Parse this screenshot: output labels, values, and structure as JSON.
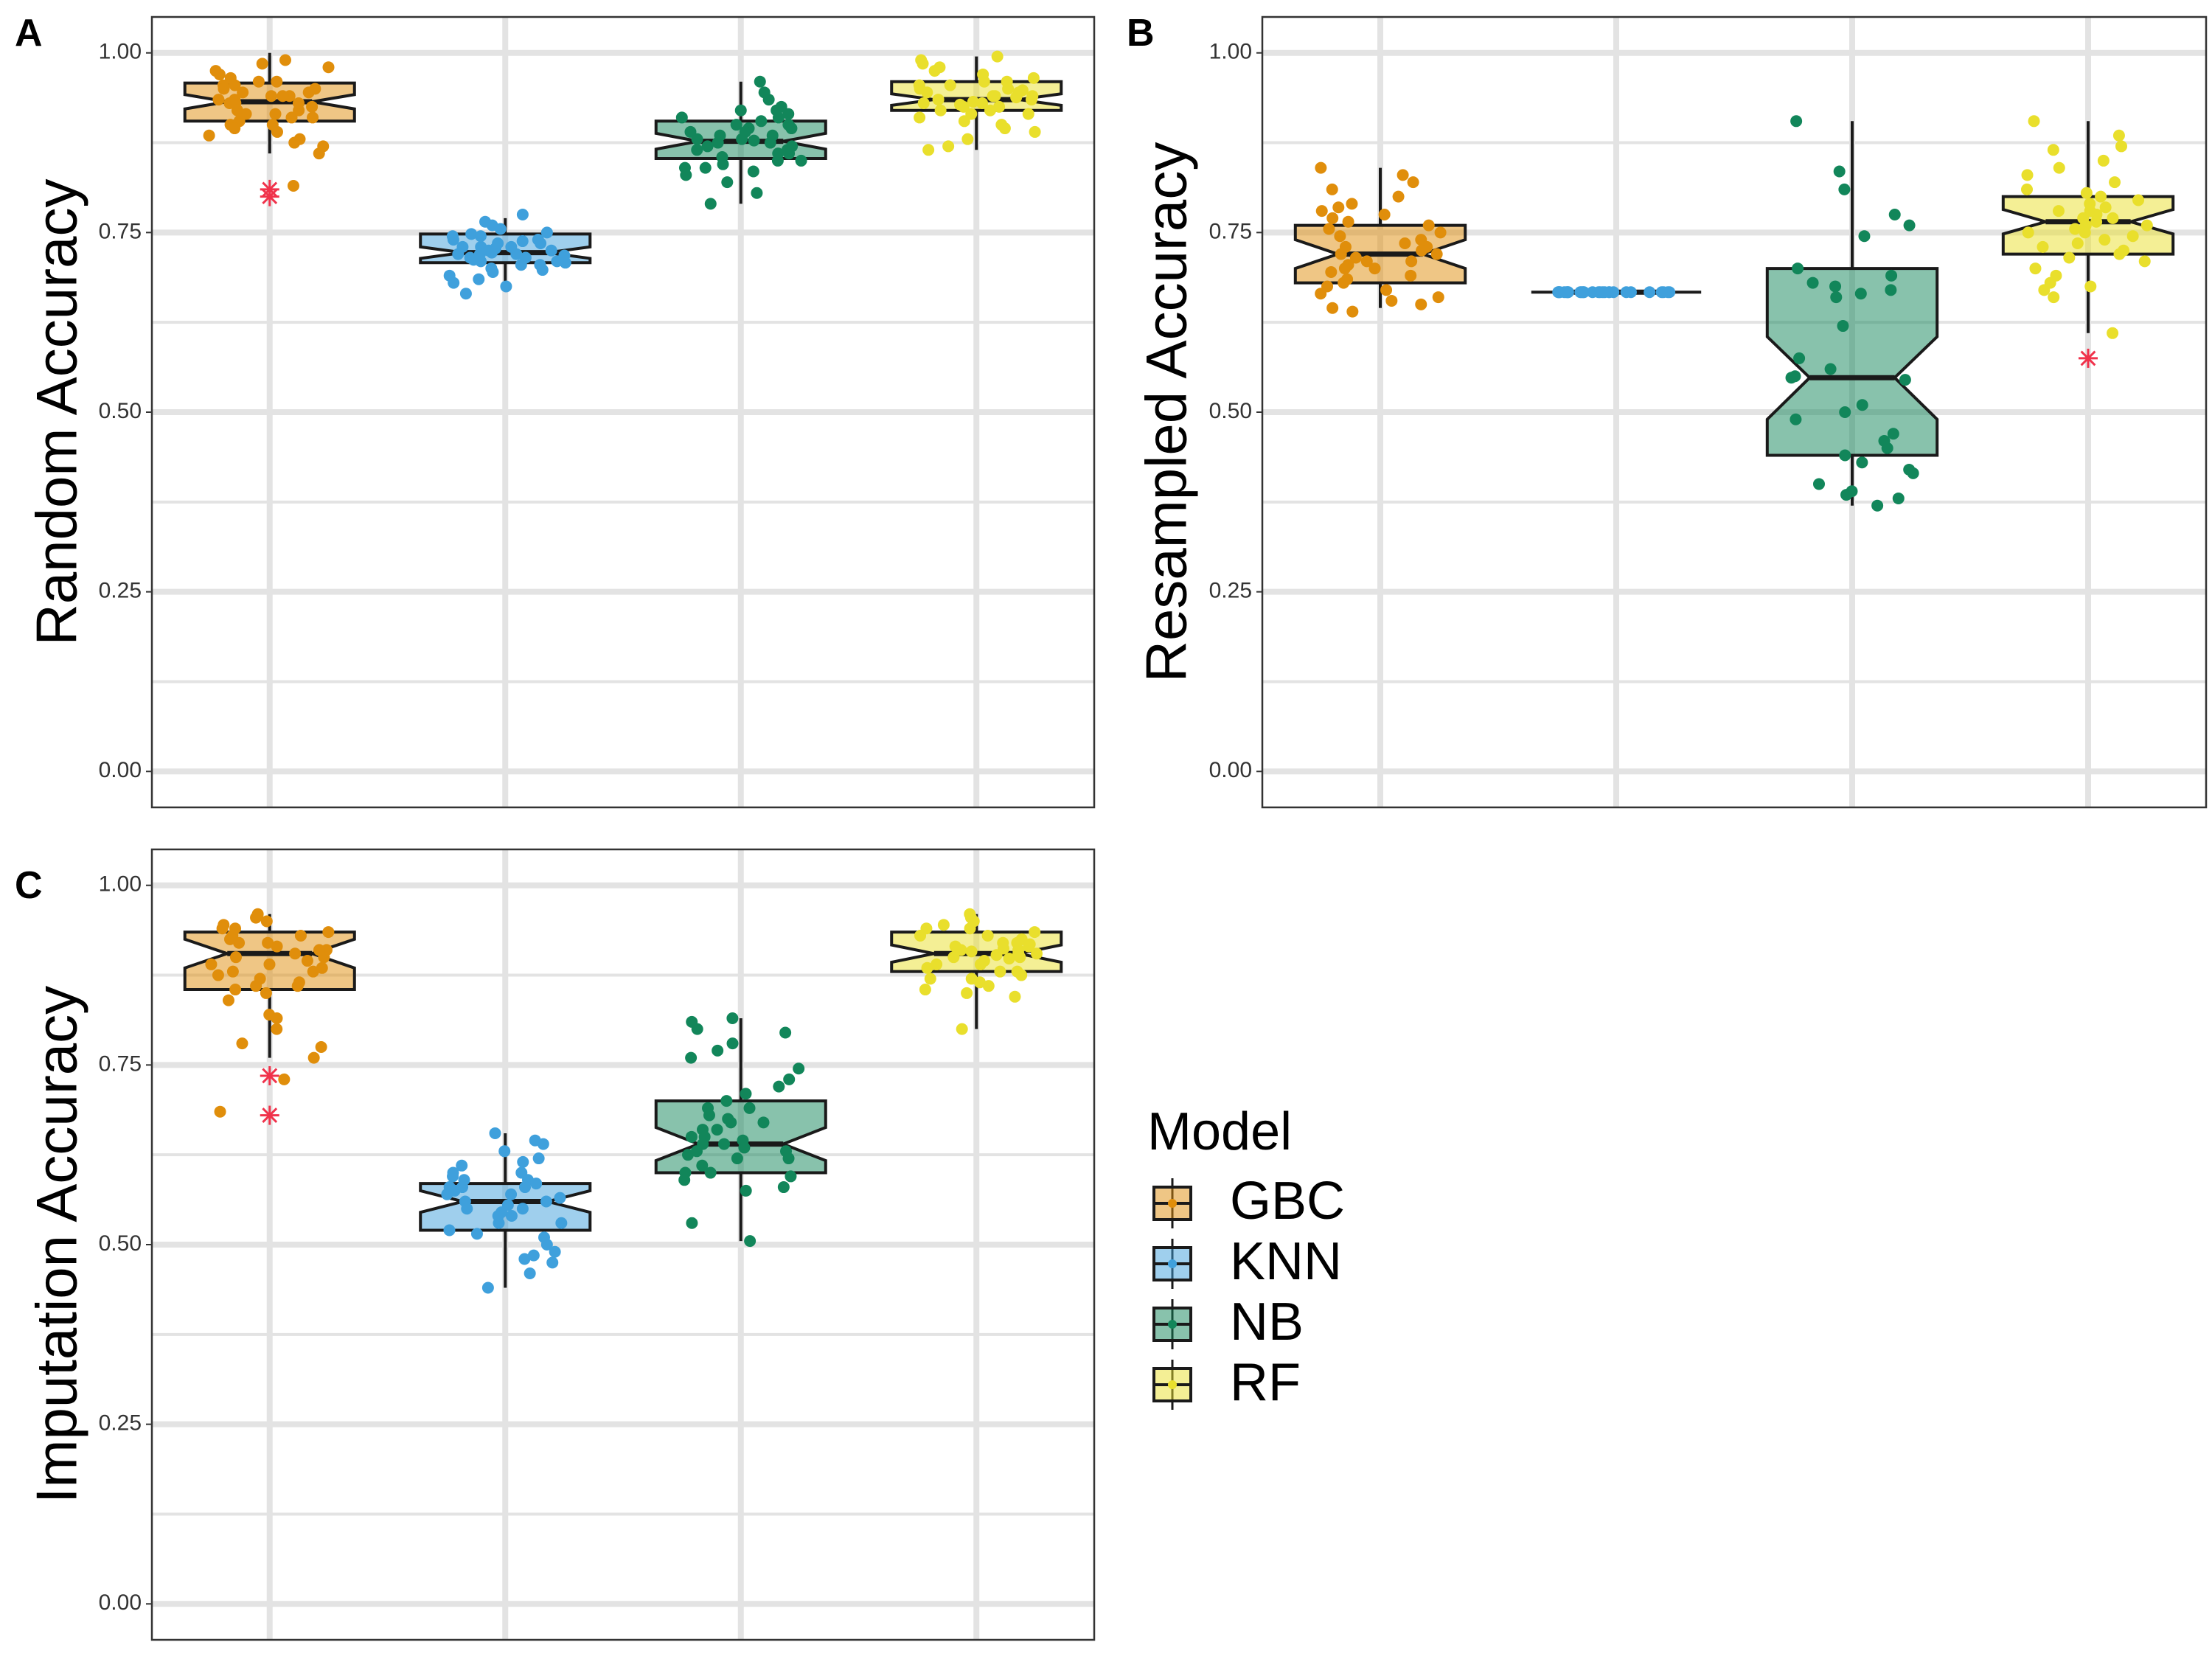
{
  "colors": {
    "GBC": "#E08E0B",
    "KNN": "#3FA0DC",
    "NB": "#12865A",
    "RF": "#E9DF2C",
    "outlier": "#F0324B",
    "grid": "#E3E3E3",
    "panel_border": "#333333"
  },
  "legend": {
    "title": "Model",
    "items": [
      "GBC",
      "KNN",
      "NB",
      "RF"
    ]
  },
  "chart_data": [
    {
      "panel": "A",
      "type": "boxplot",
      "ylabel": "Random Accuracy",
      "ylim": [
        -0.05,
        1.05
      ],
      "yticks": [
        "0.00",
        "0.25",
        "0.50",
        "0.75",
        "1.00"
      ],
      "categories": [
        "GBC",
        "KNN",
        "NB",
        "RF"
      ],
      "boxes": [
        {
          "name": "GBC",
          "min": 0.86,
          "q1": 0.905,
          "median": 0.932,
          "q3": 0.958,
          "max": 1.0,
          "notch": [
            0.922,
            0.942
          ],
          "outliers": [
            0.8,
            0.81
          ]
        },
        {
          "name": "KNN",
          "min": 0.67,
          "q1": 0.708,
          "median": 0.722,
          "q3": 0.748,
          "max": 0.77,
          "notch": [
            0.714,
            0.73
          ],
          "outliers": []
        },
        {
          "name": "NB",
          "min": 0.79,
          "q1": 0.853,
          "median": 0.877,
          "q3": 0.905,
          "max": 0.96,
          "notch": [
            0.866,
            0.888
          ],
          "outliers": []
        },
        {
          "name": "RF",
          "min": 0.865,
          "q1": 0.92,
          "median": 0.935,
          "q3": 0.96,
          "max": 0.995,
          "notch": [
            0.927,
            0.943
          ],
          "outliers": []
        }
      ],
      "points": {
        "GBC": [
          0.99,
          0.98,
          0.975,
          0.97,
          0.965,
          0.96,
          0.955,
          0.95,
          0.945,
          0.94,
          0.94,
          0.935,
          0.93,
          0.93,
          0.925,
          0.92,
          0.915,
          0.91,
          0.905,
          0.9,
          0.895,
          0.89,
          0.885,
          0.88,
          0.875,
          0.87,
          0.86,
          0.95,
          0.935,
          0.92,
          0.96,
          0.91,
          0.945,
          0.985,
          0.93,
          0.9,
          0.94,
          0.955,
          0.915,
          0.815
        ],
        "KNN": [
          0.775,
          0.765,
          0.76,
          0.755,
          0.75,
          0.748,
          0.745,
          0.74,
          0.738,
          0.735,
          0.73,
          0.728,
          0.725,
          0.722,
          0.72,
          0.718,
          0.715,
          0.712,
          0.71,
          0.708,
          0.705,
          0.7,
          0.698,
          0.695,
          0.69,
          0.685,
          0.68,
          0.675,
          0.665,
          0.74,
          0.73,
          0.72,
          0.71,
          0.725,
          0.735,
          0.715,
          0.745,
          0.705,
          0.73,
          0.72
        ],
        "NB": [
          0.96,
          0.945,
          0.935,
          0.925,
          0.92,
          0.915,
          0.91,
          0.905,
          0.9,
          0.895,
          0.89,
          0.885,
          0.88,
          0.878,
          0.875,
          0.87,
          0.865,
          0.86,
          0.855,
          0.85,
          0.845,
          0.84,
          0.835,
          0.83,
          0.82,
          0.805,
          0.79,
          0.9,
          0.88,
          0.87,
          0.86,
          0.885,
          0.895,
          0.875,
          0.865,
          0.91,
          0.85,
          0.84,
          0.92,
          0.89
        ],
        "RF": [
          0.995,
          0.99,
          0.985,
          0.98,
          0.975,
          0.97,
          0.965,
          0.96,
          0.955,
          0.95,
          0.948,
          0.945,
          0.94,
          0.938,
          0.935,
          0.932,
          0.93,
          0.928,
          0.925,
          0.92,
          0.915,
          0.91,
          0.905,
          0.9,
          0.895,
          0.89,
          0.88,
          0.87,
          0.865,
          0.95,
          0.94,
          0.93,
          0.92,
          0.96,
          0.945,
          0.935,
          0.925,
          0.915,
          0.955,
          0.94
        ]
      }
    },
    {
      "panel": "B",
      "type": "boxplot",
      "ylabel": "Resampled Accuracy",
      "ylim": [
        -0.05,
        1.05
      ],
      "yticks": [
        "0.00",
        "0.25",
        "0.50",
        "0.75",
        "1.00"
      ],
      "categories": [
        "GBC",
        "KNN",
        "NB",
        "RF"
      ],
      "boxes": [
        {
          "name": "GBC",
          "min": 0.645,
          "q1": 0.68,
          "median": 0.72,
          "q3": 0.76,
          "max": 0.84,
          "notch": [
            0.7,
            0.74
          ],
          "outliers": []
        },
        {
          "name": "KNN",
          "min": 0.667,
          "q1": 0.667,
          "median": 0.667,
          "q3": 0.667,
          "max": 0.667,
          "notch": [
            0.667,
            0.667
          ],
          "outliers": []
        },
        {
          "name": "NB",
          "min": 0.37,
          "q1": 0.44,
          "median": 0.548,
          "q3": 0.7,
          "max": 0.905,
          "notch": [
            0.49,
            0.605
          ],
          "outliers": []
        },
        {
          "name": "RF",
          "min": 0.61,
          "q1": 0.72,
          "median": 0.765,
          "q3": 0.8,
          "max": 0.905,
          "notch": [
            0.748,
            0.782
          ],
          "outliers": [
            0.575
          ]
        }
      ],
      "points": {
        "GBC": [
          0.84,
          0.83,
          0.82,
          0.81,
          0.8,
          0.79,
          0.785,
          0.78,
          0.775,
          0.77,
          0.765,
          0.76,
          0.755,
          0.75,
          0.745,
          0.74,
          0.735,
          0.73,
          0.725,
          0.72,
          0.715,
          0.71,
          0.705,
          0.7,
          0.695,
          0.69,
          0.685,
          0.68,
          0.675,
          0.67,
          0.665,
          0.66,
          0.655,
          0.65,
          0.645,
          0.64,
          0.72,
          0.73,
          0.71,
          0.7
        ],
        "KNN": [
          0.667,
          0.667,
          0.667,
          0.667,
          0.667,
          0.667,
          0.667,
          0.667,
          0.667,
          0.667,
          0.667,
          0.667,
          0.667,
          0.667,
          0.667,
          0.667,
          0.667,
          0.667,
          0.667,
          0.667,
          0.667,
          0.667,
          0.667,
          0.667,
          0.667,
          0.667,
          0.667,
          0.667,
          0.667,
          0.667
        ],
        "NB": [
          0.905,
          0.835,
          0.81,
          0.775,
          0.76,
          0.745,
          0.7,
          0.69,
          0.68,
          0.675,
          0.67,
          0.665,
          0.66,
          0.62,
          0.575,
          0.56,
          0.55,
          0.548,
          0.545,
          0.51,
          0.5,
          0.49,
          0.47,
          0.46,
          0.45,
          0.44,
          0.43,
          0.42,
          0.415,
          0.4,
          0.39,
          0.385,
          0.38,
          0.37
        ],
        "RF": [
          0.905,
          0.885,
          0.87,
          0.865,
          0.85,
          0.84,
          0.83,
          0.82,
          0.81,
          0.805,
          0.8,
          0.795,
          0.79,
          0.785,
          0.78,
          0.775,
          0.77,
          0.765,
          0.76,
          0.755,
          0.75,
          0.745,
          0.74,
          0.735,
          0.73,
          0.725,
          0.72,
          0.715,
          0.71,
          0.7,
          0.69,
          0.68,
          0.675,
          0.67,
          0.66,
          0.61,
          0.78,
          0.77,
          0.76,
          0.75
        ]
      }
    },
    {
      "panel": "C",
      "type": "boxplot",
      "ylabel": "Imputation Accuracy",
      "ylim": [
        -0.05,
        1.05
      ],
      "yticks": [
        "0.00",
        "0.25",
        "0.50",
        "0.75",
        "1.00"
      ],
      "categories": [
        "GBC",
        "KNN",
        "NB",
        "RF"
      ],
      "boxes": [
        {
          "name": "GBC",
          "min": 0.76,
          "q1": 0.855,
          "median": 0.905,
          "q3": 0.935,
          "max": 0.96,
          "notch": [
            0.885,
            0.925
          ],
          "outliers": [
            0.68,
            0.735
          ]
        },
        {
          "name": "KNN",
          "min": 0.44,
          "q1": 0.52,
          "median": 0.56,
          "q3": 0.585,
          "max": 0.655,
          "notch": [
            0.545,
            0.575
          ],
          "outliers": []
        },
        {
          "name": "NB",
          "min": 0.505,
          "q1": 0.6,
          "median": 0.64,
          "q3": 0.7,
          "max": 0.815,
          "notch": [
            0.617,
            0.663
          ],
          "outliers": []
        },
        {
          "name": "RF",
          "min": 0.8,
          "q1": 0.88,
          "median": 0.905,
          "q3": 0.935,
          "max": 0.96,
          "notch": [
            0.893,
            0.917
          ],
          "outliers": []
        }
      ],
      "points": {
        "GBC": [
          0.96,
          0.955,
          0.95,
          0.945,
          0.94,
          0.935,
          0.93,
          0.925,
          0.92,
          0.915,
          0.91,
          0.905,
          0.9,
          0.895,
          0.89,
          0.885,
          0.88,
          0.875,
          0.87,
          0.865,
          0.86,
          0.855,
          0.85,
          0.84,
          0.82,
          0.815,
          0.8,
          0.78,
          0.775,
          0.76,
          0.73,
          0.685,
          0.91,
          0.9,
          0.92,
          0.89,
          0.93,
          0.94,
          0.88,
          0.86
        ],
        "KNN": [
          0.655,
          0.645,
          0.64,
          0.63,
          0.62,
          0.615,
          0.61,
          0.6,
          0.595,
          0.59,
          0.585,
          0.58,
          0.575,
          0.57,
          0.565,
          0.56,
          0.555,
          0.55,
          0.545,
          0.54,
          0.53,
          0.52,
          0.515,
          0.51,
          0.5,
          0.49,
          0.485,
          0.48,
          0.475,
          0.46,
          0.44,
          0.56,
          0.57,
          0.58,
          0.55,
          0.59,
          0.53,
          0.6,
          0.54,
          0.58
        ],
        "NB": [
          0.815,
          0.81,
          0.8,
          0.795,
          0.78,
          0.77,
          0.76,
          0.745,
          0.73,
          0.72,
          0.71,
          0.7,
          0.69,
          0.68,
          0.675,
          0.67,
          0.66,
          0.65,
          0.645,
          0.64,
          0.635,
          0.63,
          0.625,
          0.62,
          0.61,
          0.6,
          0.595,
          0.59,
          0.58,
          0.575,
          0.53,
          0.505,
          0.64,
          0.65,
          0.62,
          0.66,
          0.63,
          0.6,
          0.67,
          0.69
        ],
        "RF": [
          0.96,
          0.955,
          0.95,
          0.945,
          0.94,
          0.935,
          0.93,
          0.925,
          0.92,
          0.918,
          0.915,
          0.912,
          0.91,
          0.908,
          0.905,
          0.903,
          0.9,
          0.898,
          0.895,
          0.89,
          0.885,
          0.88,
          0.875,
          0.87,
          0.865,
          0.86,
          0.855,
          0.85,
          0.845,
          0.8,
          0.91,
          0.9,
          0.92,
          0.89,
          0.93,
          0.94,
          0.88,
          0.87,
          0.915,
          0.905
        ]
      }
    }
  ]
}
